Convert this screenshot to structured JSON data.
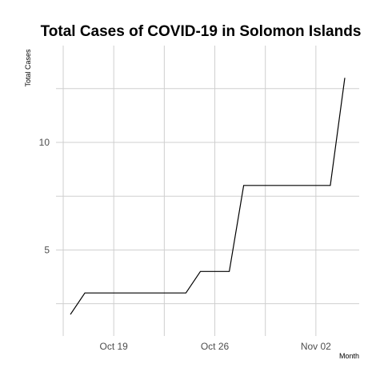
{
  "chart_data": {
    "type": "line",
    "title": "Total Cases of COVID-19 in Solomon Islands",
    "xlabel": "Month",
    "ylabel": "Total Cases",
    "x": [
      "2020-10-16",
      "2020-10-17",
      "2020-10-18",
      "2020-10-19",
      "2020-10-20",
      "2020-10-21",
      "2020-10-22",
      "2020-10-23",
      "2020-10-24",
      "2020-10-25",
      "2020-10-26",
      "2020-10-27",
      "2020-10-28",
      "2020-10-29",
      "2020-10-30",
      "2020-10-31",
      "2020-11-01",
      "2020-11-02",
      "2020-11-03",
      "2020-11-04"
    ],
    "series": [
      {
        "values": [
          2,
          3,
          3,
          3,
          3,
          3,
          3,
          3,
          3,
          4,
          4,
          4,
          8,
          8,
          8,
          8,
          8,
          8,
          8,
          13
        ]
      }
    ],
    "x_ticks": [
      {
        "date": "2020-10-19",
        "label": "Oct 19"
      },
      {
        "date": "2020-10-26",
        "label": "Oct 26"
      },
      {
        "date": "2020-11-02",
        "label": "Nov 02"
      }
    ],
    "y_ticks": [
      {
        "value": 5,
        "label": "5"
      },
      {
        "value": 10,
        "label": "10"
      }
    ],
    "xlim": [
      "2020-10-15",
      "2020-11-05"
    ],
    "ylim": [
      1.0,
      14.5
    ],
    "grid": true,
    "line_color": "#000000",
    "grid_color": "#cfcfcf"
  }
}
